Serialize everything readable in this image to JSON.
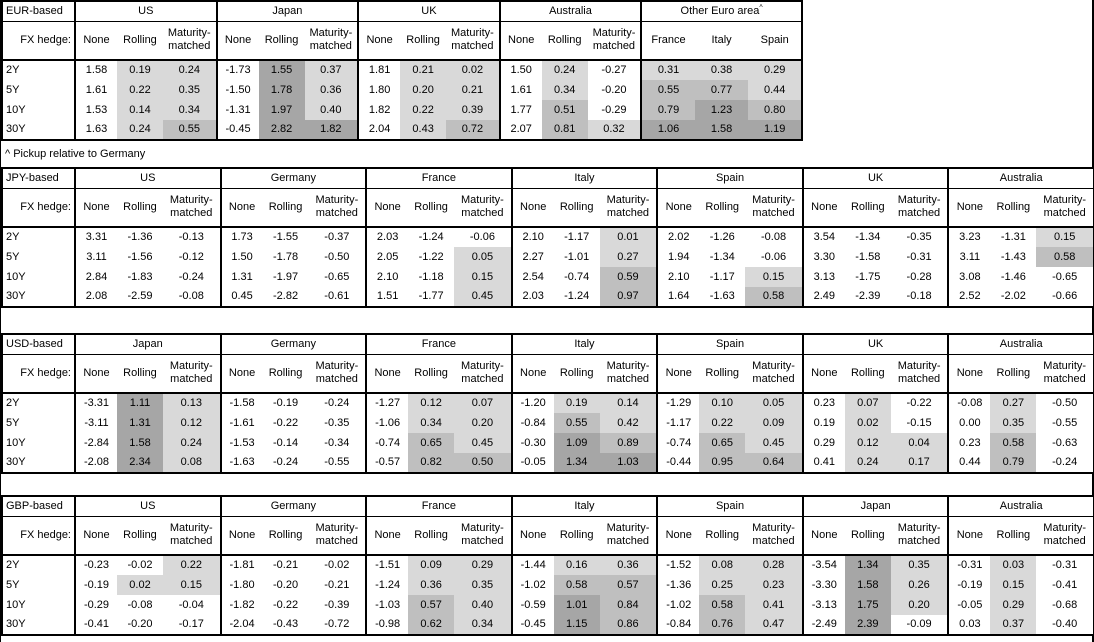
{
  "note": "^ Pickup relative to Germany",
  "fx_hedge_label": "FX hedge:",
  "sub_headers": [
    "None",
    "Rolling",
    "Maturity-matched"
  ],
  "tenors": [
    "2Y",
    "5Y",
    "10Y",
    "30Y"
  ],
  "shading": {
    "light": "#d9d9d9",
    "medium": "#bfbfbf",
    "dark": "#a6a6a6",
    "thresholds": [
      0,
      0.5,
      1.0
    ],
    "rule": "cells in Rolling, Maturity-matched and pickup columns shaded by value; negatives white"
  },
  "tables": [
    {
      "id": "eur",
      "label": "EUR-based",
      "groups": [
        {
          "name": "US",
          "rows": [
            [
              "1.58",
              "0.19",
              "0.24"
            ],
            [
              "1.61",
              "0.22",
              "0.35"
            ],
            [
              "1.53",
              "0.14",
              "0.34"
            ],
            [
              "1.63",
              "0.24",
              "0.55"
            ]
          ]
        },
        {
          "name": "Japan",
          "rows": [
            [
              "-1.73",
              "1.55",
              "0.37"
            ],
            [
              "-1.50",
              "1.78",
              "0.36"
            ],
            [
              "-1.31",
              "1.97",
              "0.40"
            ],
            [
              "-0.45",
              "2.82",
              "1.82"
            ]
          ]
        },
        {
          "name": "UK",
          "rows": [
            [
              "1.81",
              "0.21",
              "0.02"
            ],
            [
              "1.80",
              "0.20",
              "0.21"
            ],
            [
              "1.82",
              "0.22",
              "0.39"
            ],
            [
              "2.04",
              "0.43",
              "0.72"
            ]
          ]
        },
        {
          "name": "Australia",
          "rows": [
            [
              "1.50",
              "0.24",
              "-0.27"
            ],
            [
              "1.61",
              "0.34",
              "-0.20"
            ],
            [
              "1.77",
              "0.51",
              "-0.29"
            ],
            [
              "2.07",
              "0.81",
              "0.32"
            ]
          ]
        },
        {
          "name": "Other Euro area",
          "sup": "^",
          "pickup": true,
          "subcols": [
            "France",
            "Italy",
            "Spain"
          ],
          "rows": [
            [
              "0.31",
              "0.38",
              "0.29"
            ],
            [
              "0.55",
              "0.77",
              "0.44"
            ],
            [
              "0.79",
              "1.23",
              "0.80"
            ],
            [
              "1.06",
              "1.58",
              "1.19"
            ]
          ]
        }
      ]
    },
    {
      "id": "jpy",
      "label": "JPY-based",
      "groups": [
        {
          "name": "US",
          "rows": [
            [
              "3.31",
              "-1.36",
              "-0.13"
            ],
            [
              "3.11",
              "-1.56",
              "-0.12"
            ],
            [
              "2.84",
              "-1.83",
              "-0.24"
            ],
            [
              "2.08",
              "-2.59",
              "-0.08"
            ]
          ]
        },
        {
          "name": "Germany",
          "rows": [
            [
              "1.73",
              "-1.55",
              "-0.37"
            ],
            [
              "1.50",
              "-1.78",
              "-0.50"
            ],
            [
              "1.31",
              "-1.97",
              "-0.65"
            ],
            [
              "0.45",
              "-2.82",
              "-0.61"
            ]
          ]
        },
        {
          "name": "France",
          "rows": [
            [
              "2.03",
              "-1.24",
              "-0.06"
            ],
            [
              "2.05",
              "-1.22",
              "0.05"
            ],
            [
              "2.10",
              "-1.18",
              "0.15"
            ],
            [
              "1.51",
              "-1.77",
              "0.45"
            ]
          ]
        },
        {
          "name": "Italy",
          "rows": [
            [
              "2.10",
              "-1.17",
              "0.01"
            ],
            [
              "2.27",
              "-1.01",
              "0.27"
            ],
            [
              "2.54",
              "-0.74",
              "0.59"
            ],
            [
              "2.03",
              "-1.24",
              "0.97"
            ]
          ]
        },
        {
          "name": "Spain",
          "rows": [
            [
              "2.02",
              "-1.26",
              "-0.08"
            ],
            [
              "1.94",
              "-1.34",
              "-0.06"
            ],
            [
              "2.10",
              "-1.17",
              "0.15"
            ],
            [
              "1.64",
              "-1.63",
              "0.58"
            ]
          ]
        },
        {
          "name": "UK",
          "rows": [
            [
              "3.54",
              "-1.34",
              "-0.35"
            ],
            [
              "3.30",
              "-1.58",
              "-0.31"
            ],
            [
              "3.13",
              "-1.75",
              "-0.28"
            ],
            [
              "2.49",
              "-2.39",
              "-0.18"
            ]
          ]
        },
        {
          "name": "Australia",
          "rows": [
            [
              "3.23",
              "-1.31",
              "0.15"
            ],
            [
              "3.11",
              "-1.43",
              "0.58"
            ],
            [
              "3.08",
              "-1.46",
              "-0.65"
            ],
            [
              "2.52",
              "-2.02",
              "-0.66"
            ]
          ]
        }
      ]
    },
    {
      "id": "usd",
      "label": "USD-based",
      "groups": [
        {
          "name": "Japan",
          "rows": [
            [
              "-3.31",
              "1.11",
              "0.13"
            ],
            [
              "-3.11",
              "1.31",
              "0.12"
            ],
            [
              "-2.84",
              "1.58",
              "0.24"
            ],
            [
              "-2.08",
              "2.34",
              "0.08"
            ]
          ]
        },
        {
          "name": "Germany",
          "rows": [
            [
              "-1.58",
              "-0.19",
              "-0.24"
            ],
            [
              "-1.61",
              "-0.22",
              "-0.35"
            ],
            [
              "-1.53",
              "-0.14",
              "-0.34"
            ],
            [
              "-1.63",
              "-0.24",
              "-0.55"
            ]
          ]
        },
        {
          "name": "France",
          "rows": [
            [
              "-1.27",
              "0.12",
              "0.07"
            ],
            [
              "-1.06",
              "0.34",
              "0.20"
            ],
            [
              "-0.74",
              "0.65",
              "0.45"
            ],
            [
              "-0.57",
              "0.82",
              "0.50"
            ]
          ]
        },
        {
          "name": "Italy",
          "rows": [
            [
              "-1.20",
              "0.19",
              "0.14"
            ],
            [
              "-0.84",
              "0.55",
              "0.42"
            ],
            [
              "-0.30",
              "1.09",
              "0.89"
            ],
            [
              "-0.05",
              "1.34",
              "1.03"
            ]
          ]
        },
        {
          "name": "Spain",
          "rows": [
            [
              "-1.29",
              "0.10",
              "0.05"
            ],
            [
              "-1.17",
              "0.22",
              "0.09"
            ],
            [
              "-0.74",
              "0.65",
              "0.45"
            ],
            [
              "-0.44",
              "0.95",
              "0.64"
            ]
          ]
        },
        {
          "name": "UK",
          "rows": [
            [
              "0.23",
              "0.07",
              "-0.22"
            ],
            [
              "0.19",
              "0.02",
              "-0.15"
            ],
            [
              "0.29",
              "0.12",
              "0.04"
            ],
            [
              "0.41",
              "0.24",
              "0.17"
            ]
          ]
        },
        {
          "name": "Australia",
          "rows": [
            [
              "-0.08",
              "0.27",
              "-0.50"
            ],
            [
              "0.00",
              "0.35",
              "-0.55"
            ],
            [
              "0.23",
              "0.58",
              "-0.63"
            ],
            [
              "0.44",
              "0.79",
              "-0.24"
            ]
          ]
        }
      ]
    },
    {
      "id": "gbp",
      "label": "GBP-based",
      "groups": [
        {
          "name": "US",
          "rows": [
            [
              "-0.23",
              "-0.02",
              "0.22"
            ],
            [
              "-0.19",
              "0.02",
              "0.15"
            ],
            [
              "-0.29",
              "-0.08",
              "-0.04"
            ],
            [
              "-0.41",
              "-0.20",
              "-0.17"
            ]
          ]
        },
        {
          "name": "Germany",
          "rows": [
            [
              "-1.81",
              "-0.21",
              "-0.02"
            ],
            [
              "-1.80",
              "-0.20",
              "-0.21"
            ],
            [
              "-1.82",
              "-0.22",
              "-0.39"
            ],
            [
              "-2.04",
              "-0.43",
              "-0.72"
            ]
          ]
        },
        {
          "name": "France",
          "rows": [
            [
              "-1.51",
              "0.09",
              "0.29"
            ],
            [
              "-1.24",
              "0.36",
              "0.35"
            ],
            [
              "-1.03",
              "0.57",
              "0.40"
            ],
            [
              "-0.98",
              "0.62",
              "0.34"
            ]
          ]
        },
        {
          "name": "Italy",
          "rows": [
            [
              "-1.44",
              "0.16",
              "0.36"
            ],
            [
              "-1.02",
              "0.58",
              "0.57"
            ],
            [
              "-0.59",
              "1.01",
              "0.84"
            ],
            [
              "-0.45",
              "1.15",
              "0.86"
            ]
          ]
        },
        {
          "name": "Spain",
          "rows": [
            [
              "-1.52",
              "0.08",
              "0.28"
            ],
            [
              "-1.36",
              "0.25",
              "0.23"
            ],
            [
              "-1.02",
              "0.58",
              "0.41"
            ],
            [
              "-0.84",
              "0.76",
              "0.47"
            ]
          ]
        },
        {
          "name": "Japan",
          "rows": [
            [
              "-3.54",
              "1.34",
              "0.35"
            ],
            [
              "-3.30",
              "1.58",
              "0.26"
            ],
            [
              "-3.13",
              "1.75",
              "0.20"
            ],
            [
              "-2.49",
              "2.39",
              "-0.09"
            ]
          ]
        },
        {
          "name": "Australia",
          "rows": [
            [
              "-0.31",
              "0.03",
              "-0.31"
            ],
            [
              "-0.19",
              "0.15",
              "-0.41"
            ],
            [
              "-0.05",
              "0.29",
              "-0.68"
            ],
            [
              "0.03",
              "0.37",
              "-0.40"
            ]
          ]
        }
      ]
    }
  ]
}
